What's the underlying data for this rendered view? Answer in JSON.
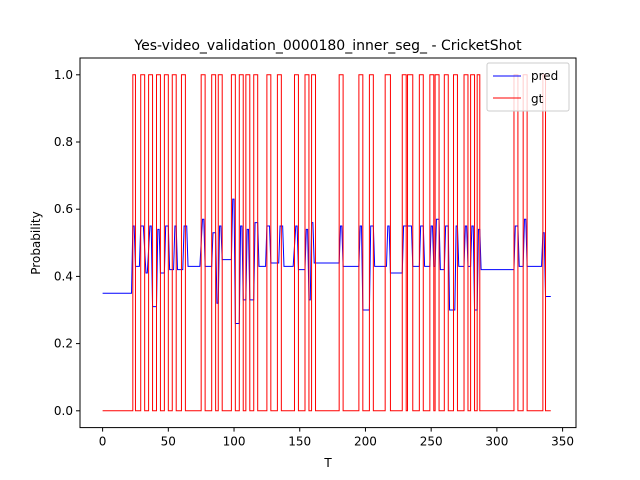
{
  "chart_data": {
    "type": "line",
    "title": "Yes-video_validation_0000180_inner_seg_ - CricketShot",
    "xlabel": "T",
    "ylabel": "Probability",
    "xlim": [
      -17.2,
      360.2
    ],
    "ylim": [
      -0.05,
      1.05
    ],
    "xticks": [
      0,
      50,
      100,
      150,
      200,
      250,
      300,
      350
    ],
    "yticks": [
      0.0,
      0.2,
      0.4,
      0.6,
      0.8,
      1.0
    ],
    "xtick_labels": [
      "0",
      "50",
      "100",
      "150",
      "200",
      "250",
      "300",
      "350"
    ],
    "ytick_labels": [
      "0.0",
      "0.2",
      "0.4",
      "0.6",
      "0.8",
      "1.0"
    ],
    "grid": false,
    "legend_position": "top-right",
    "series": [
      {
        "name": "pred",
        "color": "#0000ff",
        "points": [
          [
            0,
            0.35
          ],
          [
            22,
            0.35
          ],
          [
            23,
            0.55
          ],
          [
            24,
            0.55
          ],
          [
            25,
            0.43
          ],
          [
            28,
            0.43
          ],
          [
            29,
            0.55
          ],
          [
            31,
            0.55
          ],
          [
            33,
            0.41
          ],
          [
            34,
            0.41
          ],
          [
            36,
            0.55
          ],
          [
            37,
            0.55
          ],
          [
            38,
            0.31
          ],
          [
            41,
            0.31
          ],
          [
            42,
            0.54
          ],
          [
            43,
            0.54
          ],
          [
            44,
            0.41
          ],
          [
            47,
            0.41
          ],
          [
            48,
            0.55
          ],
          [
            50,
            0.55
          ],
          [
            51,
            0.42
          ],
          [
            54,
            0.42
          ],
          [
            55,
            0.55
          ],
          [
            56,
            0.55
          ],
          [
            57,
            0.42
          ],
          [
            61,
            0.42
          ],
          [
            62,
            0.55
          ],
          [
            64,
            0.55
          ],
          [
            65,
            0.43
          ],
          [
            74,
            0.43
          ],
          [
            76,
            0.57
          ],
          [
            77,
            0.57
          ],
          [
            78,
            0.43
          ],
          [
            83,
            0.43
          ],
          [
            84,
            0.53
          ],
          [
            86,
            0.53
          ],
          [
            87,
            0.32
          ],
          [
            88,
            0.32
          ],
          [
            89,
            0.55
          ],
          [
            90,
            0.55
          ],
          [
            91,
            0.45
          ],
          [
            98,
            0.45
          ],
          [
            99,
            0.63
          ],
          [
            100,
            0.63
          ],
          [
            101,
            0.26
          ],
          [
            104,
            0.26
          ],
          [
            105,
            0.55
          ],
          [
            106,
            0.55
          ],
          [
            107,
            0.33
          ],
          [
            109,
            0.33
          ],
          [
            110,
            0.54
          ],
          [
            111,
            0.54
          ],
          [
            112,
            0.33
          ],
          [
            115,
            0.33
          ],
          [
            116,
            0.56
          ],
          [
            118,
            0.56
          ],
          [
            119,
            0.43
          ],
          [
            124,
            0.43
          ],
          [
            125,
            0.55
          ],
          [
            127,
            0.55
          ],
          [
            128,
            0.44
          ],
          [
            134,
            0.44
          ],
          [
            135,
            0.55
          ],
          [
            137,
            0.55
          ],
          [
            138,
            0.43
          ],
          [
            145,
            0.43
          ],
          [
            147,
            0.55
          ],
          [
            148,
            0.55
          ],
          [
            149,
            0.42
          ],
          [
            154,
            0.42
          ],
          [
            155,
            0.54
          ],
          [
            156,
            0.54
          ],
          [
            157,
            0.33
          ],
          [
            158,
            0.33
          ],
          [
            159,
            0.56
          ],
          [
            160,
            0.56
          ],
          [
            161,
            0.44
          ],
          [
            180,
            0.44
          ],
          [
            181,
            0.55
          ],
          [
            182,
            0.55
          ],
          [
            183,
            0.43
          ],
          [
            195,
            0.43
          ],
          [
            196,
            0.55
          ],
          [
            197,
            0.55
          ],
          [
            198,
            0.3
          ],
          [
            203,
            0.3
          ],
          [
            204,
            0.55
          ],
          [
            206,
            0.55
          ],
          [
            207,
            0.43
          ],
          [
            216,
            0.43
          ],
          [
            217,
            0.55
          ],
          [
            218,
            0.55
          ],
          [
            219,
            0.41
          ],
          [
            228,
            0.41
          ],
          [
            229,
            0.55
          ],
          [
            235,
            0.55
          ],
          [
            236,
            0.43
          ],
          [
            241,
            0.43
          ],
          [
            242,
            0.55
          ],
          [
            244,
            0.55
          ],
          [
            245,
            0.43
          ],
          [
            249,
            0.43
          ],
          [
            250,
            0.55
          ],
          [
            251,
            0.55
          ],
          [
            252,
            0.43
          ],
          [
            253,
            0.43
          ],
          [
            254,
            0.57
          ],
          [
            256,
            0.57
          ],
          [
            257,
            0.42
          ],
          [
            260,
            0.42
          ],
          [
            261,
            0.55
          ],
          [
            263,
            0.55
          ],
          [
            264,
            0.3
          ],
          [
            268,
            0.3
          ],
          [
            269,
            0.55
          ],
          [
            270,
            0.55
          ],
          [
            271,
            0.43
          ],
          [
            275,
            0.43
          ],
          [
            276,
            0.55
          ],
          [
            277,
            0.55
          ],
          [
            278,
            0.43
          ],
          [
            280,
            0.43
          ],
          [
            281,
            0.55
          ],
          [
            282,
            0.55
          ],
          [
            283,
            0.3
          ],
          [
            285,
            0.3
          ],
          [
            286,
            0.54
          ],
          [
            287,
            0.54
          ],
          [
            288,
            0.42
          ],
          [
            313,
            0.42
          ],
          [
            314,
            0.55
          ],
          [
            316,
            0.55
          ],
          [
            317,
            0.43
          ],
          [
            320,
            0.43
          ],
          [
            321,
            0.57
          ],
          [
            322,
            0.57
          ],
          [
            323,
            0.43
          ],
          [
            334,
            0.43
          ],
          [
            335,
            0.53
          ],
          [
            336,
            0.53
          ],
          [
            337,
            0.34
          ],
          [
            341,
            0.34
          ]
        ]
      },
      {
        "name": "gt",
        "color": "#ff0000",
        "points": [
          [
            0,
            0
          ],
          [
            23,
            0
          ],
          [
            23,
            1
          ],
          [
            25,
            1
          ],
          [
            25,
            0
          ],
          [
            29,
            0
          ],
          [
            29,
            1
          ],
          [
            32,
            1
          ],
          [
            32,
            0
          ],
          [
            35,
            0
          ],
          [
            35,
            1
          ],
          [
            38,
            1
          ],
          [
            38,
            0
          ],
          [
            41,
            0
          ],
          [
            41,
            1
          ],
          [
            44,
            1
          ],
          [
            44,
            0
          ],
          [
            47,
            0
          ],
          [
            47,
            1
          ],
          [
            50,
            1
          ],
          [
            50,
            0
          ],
          [
            53,
            0
          ],
          [
            53,
            1
          ],
          [
            56,
            1
          ],
          [
            56,
            0
          ],
          [
            60,
            0
          ],
          [
            60,
            1
          ],
          [
            63,
            1
          ],
          [
            63,
            0
          ],
          [
            75,
            0
          ],
          [
            75,
            1
          ],
          [
            78,
            1
          ],
          [
            78,
            0
          ],
          [
            83,
            0
          ],
          [
            83,
            1
          ],
          [
            86,
            1
          ],
          [
            86,
            0
          ],
          [
            88,
            0
          ],
          [
            88,
            1
          ],
          [
            91,
            1
          ],
          [
            91,
            0
          ],
          [
            98,
            0
          ],
          [
            98,
            1
          ],
          [
            101,
            1
          ],
          [
            101,
            0
          ],
          [
            104,
            0
          ],
          [
            104,
            1
          ],
          [
            107,
            1
          ],
          [
            107,
            0
          ],
          [
            109,
            0
          ],
          [
            109,
            1
          ],
          [
            112,
            1
          ],
          [
            112,
            0
          ],
          [
            115,
            0
          ],
          [
            115,
            1
          ],
          [
            118,
            1
          ],
          [
            118,
            0
          ],
          [
            125,
            0
          ],
          [
            125,
            1
          ],
          [
            128,
            1
          ],
          [
            128,
            0
          ],
          [
            133,
            0
          ],
          [
            133,
            1
          ],
          [
            136,
            1
          ],
          [
            136,
            0
          ],
          [
            146,
            0
          ],
          [
            146,
            1
          ],
          [
            149,
            1
          ],
          [
            149,
            0
          ],
          [
            154,
            0
          ],
          [
            154,
            1
          ],
          [
            157,
            1
          ],
          [
            157,
            0
          ],
          [
            159,
            0
          ],
          [
            159,
            1
          ],
          [
            162,
            1
          ],
          [
            162,
            0
          ],
          [
            180,
            0
          ],
          [
            180,
            1
          ],
          [
            183,
            1
          ],
          [
            183,
            0
          ],
          [
            195,
            0
          ],
          [
            195,
            1
          ],
          [
            198,
            1
          ],
          [
            198,
            0
          ],
          [
            203,
            0
          ],
          [
            203,
            1
          ],
          [
            206,
            1
          ],
          [
            206,
            0
          ],
          [
            215,
            0
          ],
          [
            215,
            1
          ],
          [
            219,
            1
          ],
          [
            219,
            0
          ],
          [
            228,
            0
          ],
          [
            228,
            1
          ],
          [
            231,
            1
          ],
          [
            231,
            0
          ],
          [
            232,
            0
          ],
          [
            232,
            1
          ],
          [
            236,
            1
          ],
          [
            236,
            0
          ],
          [
            241,
            0
          ],
          [
            241,
            1
          ],
          [
            244,
            1
          ],
          [
            244,
            0
          ],
          [
            249,
            0
          ],
          [
            249,
            1
          ],
          [
            252,
            1
          ],
          [
            252,
            0
          ],
          [
            253,
            0
          ],
          [
            253,
            1
          ],
          [
            256,
            1
          ],
          [
            256,
            0
          ],
          [
            260,
            0
          ],
          [
            260,
            1
          ],
          [
            263,
            1
          ],
          [
            263,
            0
          ],
          [
            267,
            0
          ],
          [
            267,
            1
          ],
          [
            270,
            1
          ],
          [
            270,
            0
          ],
          [
            275,
            0
          ],
          [
            275,
            1
          ],
          [
            278,
            1
          ],
          [
            278,
            0
          ],
          [
            280,
            0
          ],
          [
            280,
            1
          ],
          [
            283,
            1
          ],
          [
            283,
            0
          ],
          [
            285,
            0
          ],
          [
            285,
            1
          ],
          [
            287,
            1
          ],
          [
            287,
            0
          ],
          [
            313,
            0
          ],
          [
            313,
            1
          ],
          [
            316,
            1
          ],
          [
            316,
            0
          ],
          [
            320,
            0
          ],
          [
            320,
            1
          ],
          [
            323,
            1
          ],
          [
            323,
            0
          ],
          [
            335,
            0
          ],
          [
            335,
            1
          ],
          [
            337,
            1
          ],
          [
            337,
            0
          ],
          [
            341,
            0
          ]
        ]
      }
    ]
  }
}
